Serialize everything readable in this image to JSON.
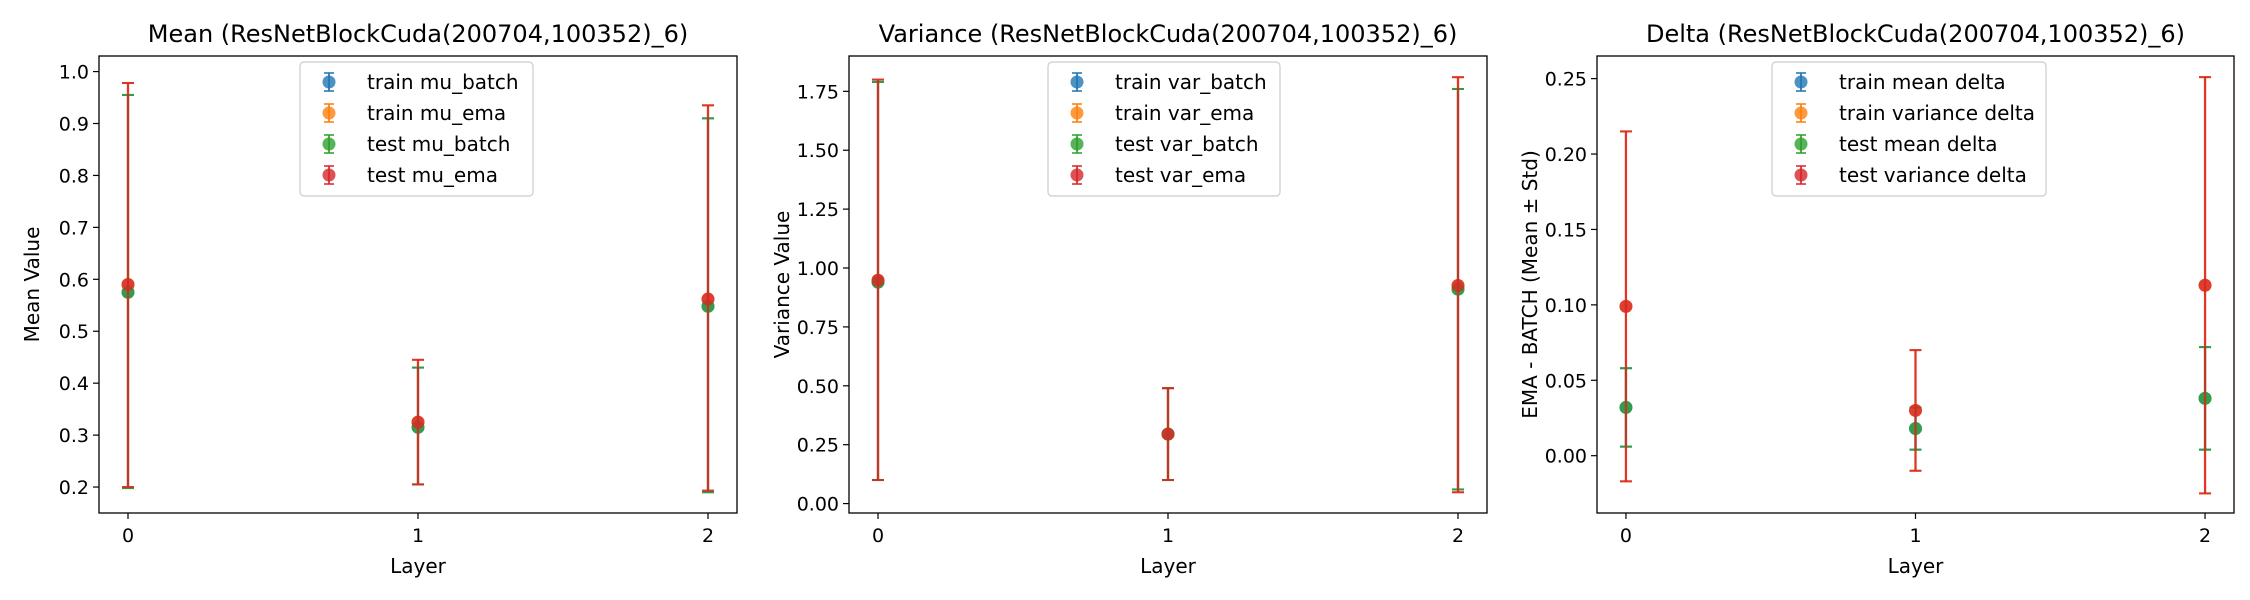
{
  "colors": {
    "blue": "#1f77b4",
    "orange": "#ff7f0e",
    "green": "#2ca02c",
    "red": "#d62728"
  },
  "chart_data": [
    {
      "type": "scatter",
      "title": "Mean (ResNetBlockCuda(200704,100352)_6)",
      "xlabel": "Layer",
      "ylabel": "Mean Value",
      "x": [
        0,
        1,
        2
      ],
      "xlim": [
        -0.1,
        2.1
      ],
      "ylim": [
        0.15,
        1.03
      ],
      "yticks": [
        0.2,
        0.3,
        0.4,
        0.5,
        0.6,
        0.7,
        0.8,
        0.9,
        1.0
      ],
      "yticklabels": [
        "0.2",
        "0.3",
        "0.4",
        "0.5",
        "0.6",
        "0.7",
        "0.8",
        "0.9",
        "1.0"
      ],
      "grid": false,
      "legend_position": "upper center",
      "series": [
        {
          "name": "train mu_batch",
          "color": "blue",
          "values": [
            0.575,
            0.315,
            0.548
          ],
          "err_low": [
            0.198,
            0.205,
            0.19
          ],
          "err_high": [
            0.955,
            0.43,
            0.91
          ]
        },
        {
          "name": "train mu_ema",
          "color": "orange",
          "values": [
            0.59,
            0.325,
            0.562
          ],
          "err_low": [
            0.2,
            0.205,
            0.193
          ],
          "err_high": [
            0.978,
            0.445,
            0.935
          ]
        },
        {
          "name": "test mu_batch",
          "color": "green",
          "values": [
            0.575,
            0.315,
            0.548
          ],
          "err_low": [
            0.198,
            0.205,
            0.19
          ],
          "err_high": [
            0.955,
            0.43,
            0.91
          ]
        },
        {
          "name": "test mu_ema",
          "color": "red",
          "values": [
            0.59,
            0.325,
            0.562
          ],
          "err_low": [
            0.2,
            0.205,
            0.193
          ],
          "err_high": [
            0.978,
            0.445,
            0.935
          ]
        }
      ]
    },
    {
      "type": "scatter",
      "title": "Variance (ResNetBlockCuda(200704,100352)_6)",
      "xlabel": "Layer",
      "ylabel": "Variance Value",
      "x": [
        0,
        1,
        2
      ],
      "xlim": [
        -0.1,
        2.1
      ],
      "ylim": [
        -0.04,
        1.9
      ],
      "yticks": [
        0.0,
        0.25,
        0.5,
        0.75,
        1.0,
        1.25,
        1.5,
        1.75
      ],
      "yticklabels": [
        "0.00",
        "0.25",
        "0.50",
        "0.75",
        "1.00",
        "1.25",
        "1.50",
        "1.75"
      ],
      "grid": false,
      "legend_position": "upper center",
      "series": [
        {
          "name": "train var_batch",
          "color": "blue",
          "values": [
            0.94,
            0.295,
            0.91
          ],
          "err_low": [
            0.1,
            0.1,
            0.06
          ],
          "err_high": [
            1.79,
            0.49,
            1.76
          ]
        },
        {
          "name": "train var_ema",
          "color": "orange",
          "values": [
            0.948,
            0.295,
            0.926
          ],
          "err_low": [
            0.1,
            0.1,
            0.048
          ],
          "err_high": [
            1.8,
            0.49,
            1.81
          ]
        },
        {
          "name": "test var_batch",
          "color": "green",
          "values": [
            0.94,
            0.295,
            0.91
          ],
          "err_low": [
            0.1,
            0.1,
            0.06
          ],
          "err_high": [
            1.79,
            0.49,
            1.76
          ]
        },
        {
          "name": "test var_ema",
          "color": "red",
          "values": [
            0.948,
            0.295,
            0.926
          ],
          "err_low": [
            0.1,
            0.1,
            0.048
          ],
          "err_high": [
            1.8,
            0.49,
            1.81
          ]
        }
      ]
    },
    {
      "type": "scatter",
      "title": "Delta (ResNetBlockCuda(200704,100352)_6)",
      "xlabel": "Layer",
      "ylabel": "EMA - BATCH (Mean ± Std)",
      "x": [
        0,
        1,
        2
      ],
      "xlim": [
        -0.1,
        2.1
      ],
      "ylim": [
        -0.038,
        0.265
      ],
      "yticks": [
        0.0,
        0.05,
        0.1,
        0.15,
        0.2,
        0.25
      ],
      "yticklabels": [
        "0.00",
        "0.05",
        "0.10",
        "0.15",
        "0.20",
        "0.25"
      ],
      "grid": false,
      "legend_position": "upper center",
      "series": [
        {
          "name": "train mean delta",
          "color": "blue",
          "values": [
            0.032,
            0.018,
            0.038
          ],
          "err_low": [
            0.006,
            0.004,
            0.004
          ],
          "err_high": [
            0.058,
            0.032,
            0.072
          ]
        },
        {
          "name": "train variance delta",
          "color": "orange",
          "values": [
            0.099,
            0.03,
            0.113
          ],
          "err_low": [
            -0.017,
            -0.01,
            -0.025
          ],
          "err_high": [
            0.215,
            0.07,
            0.251
          ]
        },
        {
          "name": "test mean delta",
          "color": "green",
          "values": [
            0.032,
            0.018,
            0.038
          ],
          "err_low": [
            0.006,
            0.004,
            0.004
          ],
          "err_high": [
            0.058,
            0.032,
            0.072
          ]
        },
        {
          "name": "test variance delta",
          "color": "red",
          "values": [
            0.099,
            0.03,
            0.113
          ],
          "err_low": [
            -0.017,
            -0.01,
            -0.025
          ],
          "err_high": [
            0.215,
            0.07,
            0.251
          ]
        }
      ]
    }
  ]
}
